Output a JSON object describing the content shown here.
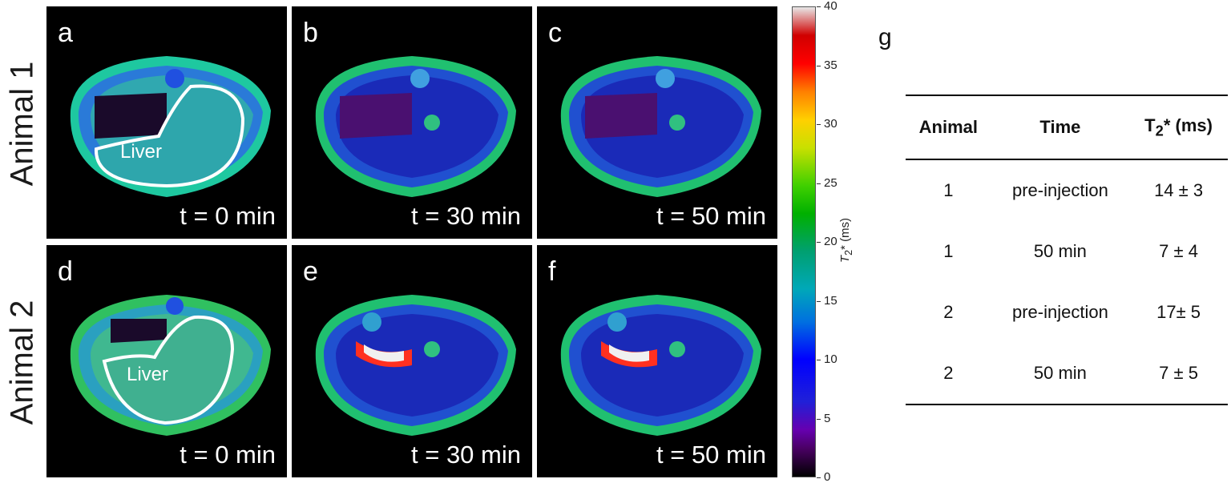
{
  "row_labels": [
    "Animal 1",
    "Animal 2"
  ],
  "panels": [
    {
      "letter": "a",
      "time": "t = 0 min",
      "roi": "Liver"
    },
    {
      "letter": "b",
      "time": "t = 30 min",
      "roi": ""
    },
    {
      "letter": "c",
      "time": "t = 50 min",
      "roi": ""
    },
    {
      "letter": "d",
      "time": "t = 0 min",
      "roi": "Liver"
    },
    {
      "letter": "e",
      "time": "t = 30 min",
      "roi": ""
    },
    {
      "letter": "f",
      "time": "t = 50 min",
      "roi": ""
    }
  ],
  "colorbar": {
    "title": "T2* (ms)",
    "ticks": [
      "0",
      "5",
      "10",
      "15",
      "20",
      "25",
      "30",
      "35",
      "40"
    ],
    "range": [
      0,
      40
    ],
    "colormap": "nipy_spectral"
  },
  "table": {
    "panel_letter": "g",
    "headers": [
      "Animal",
      "Time",
      "T2* (ms)"
    ],
    "rows": [
      [
        "1",
        "pre-injection",
        "14 ± 3"
      ],
      [
        "1",
        "50 min",
        "7 ± 4"
      ],
      [
        "2",
        "pre-injection",
        "17± 5"
      ],
      [
        "2",
        "50 min",
        "7 ± 5"
      ]
    ]
  }
}
